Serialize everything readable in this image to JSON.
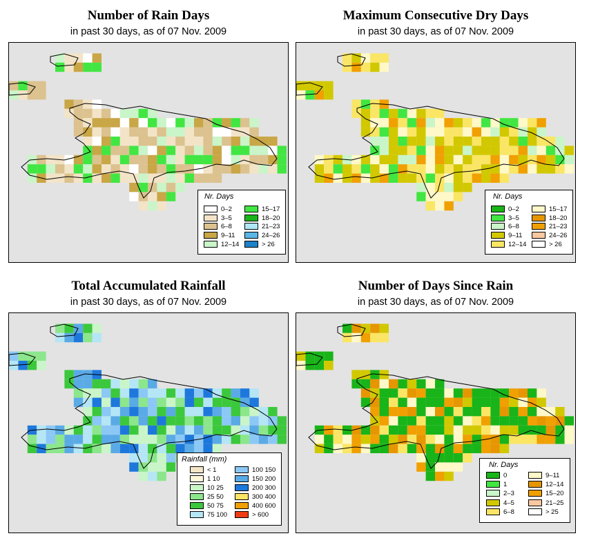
{
  "panels": [
    {
      "title": "Number of Rain Days",
      "subtitle": "in past 30 days, as of  07 Nov. 2009",
      "legend": {
        "title": "Nr. Days",
        "items": [
          {
            "label": "0–2",
            "color": "#ffffff"
          },
          {
            "label": "3–5",
            "color": "#f3e4c8"
          },
          {
            "label": "6–8",
            "color": "#dcc28e"
          },
          {
            "label": "9–11",
            "color": "#c9a646"
          },
          {
            "label": "12–14",
            "color": "#c9f5c9"
          },
          {
            "label": "15–17",
            "color": "#42e642"
          },
          {
            "label": "18–20",
            "color": "#19b419"
          },
          {
            "label": "21–23",
            "color": "#aee6f5"
          },
          {
            "label": "24–26",
            "color": "#5ab4e6"
          },
          {
            "label": "> 26",
            "color": "#1e82c8"
          }
        ]
      }
    },
    {
      "title": "Maximum Consecutive Dry Days",
      "subtitle": "in past 30 days, as of  07 Nov. 2009",
      "legend": {
        "title": "Nr. Days",
        "items": [
          {
            "label": "0–2",
            "color": "#19b419"
          },
          {
            "label": "3–5",
            "color": "#42e642"
          },
          {
            "label": "6–8",
            "color": "#c9f5c9"
          },
          {
            "label": "9–11",
            "color": "#d2c800"
          },
          {
            "label": "12–14",
            "color": "#fae664"
          },
          {
            "label": "15–17",
            "color": "#fff8c8"
          },
          {
            "label": "18–20",
            "color": "#e69600"
          },
          {
            "label": "21–23",
            "color": "#f0a000"
          },
          {
            "label": "24–26",
            "color": "#fac8a0"
          },
          {
            "label": "> 26",
            "color": "#ffffff"
          }
        ]
      }
    },
    {
      "title": "Total Accumulated Rainfall",
      "subtitle": "in past 30 days, as of  07 Nov. 2009",
      "legend": {
        "title": "Rainfall (mm)",
        "items": [
          {
            "label": "< 1",
            "color": "#f5e6c8"
          },
          {
            "label": "1    10",
            "color": "#fff8dc"
          },
          {
            "label": "10    25",
            "color": "#c9f5c9"
          },
          {
            "label": "25    50",
            "color": "#8ce68c"
          },
          {
            "label": "50    75",
            "color": "#3cc83c"
          },
          {
            "label": "75   100",
            "color": "#b4e6f5"
          },
          {
            "label": "100   150",
            "color": "#8cc8f5"
          },
          {
            "label": "150   200",
            "color": "#5aaae6"
          },
          {
            "label": "200   300",
            "color": "#1e78dc"
          },
          {
            "label": "300   400",
            "color": "#fae664"
          },
          {
            "label": "400   600",
            "color": "#f0a000"
          },
          {
            "label": "> 600",
            "color": "#f03c14"
          }
        ]
      }
    },
    {
      "title": "Number of Days Since Rain",
      "subtitle": "in past 30 days, as of  07 Nov. 2009",
      "legend": {
        "title": "Nr. Days",
        "items": [
          {
            "label": "0",
            "color": "#19b419"
          },
          {
            "label": "1",
            "color": "#42e642"
          },
          {
            "label": "2–3",
            "color": "#c9f5c9"
          },
          {
            "label": "4–5",
            "color": "#d2c800"
          },
          {
            "label": "6–8",
            "color": "#fae664"
          },
          {
            "label": "9–11",
            "color": "#fff8c8"
          },
          {
            "label": "12–14",
            "color": "#e69600"
          },
          {
            "label": "15–20",
            "color": "#f0a000"
          },
          {
            "label": "21–25",
            "color": "#fac8a0"
          },
          {
            "label": "> 25",
            "color": "#ffffff"
          }
        ]
      }
    }
  ]
}
